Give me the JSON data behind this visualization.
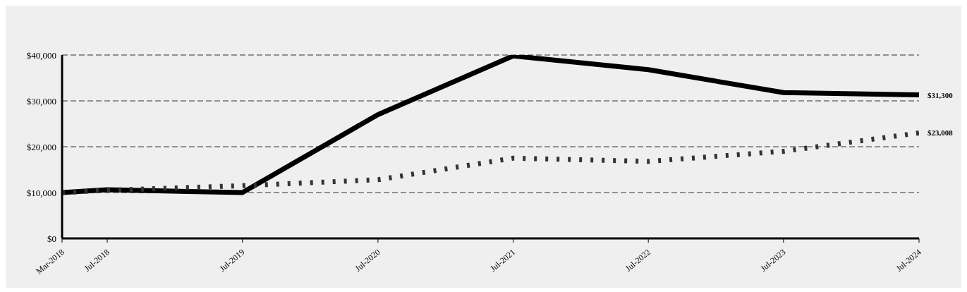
{
  "chart_data": {
    "type": "line",
    "x": [
      "2018-03",
      "2018-07",
      "2019-07",
      "2020-07",
      "2021-07",
      "2022-07",
      "2023-07",
      "2024-07"
    ],
    "series": [
      {
        "color": "#000000",
        "line_style": "solid",
        "values": [
          10000,
          10600,
          10000,
          27000,
          39800,
          36800,
          31800,
          31300
        ],
        "value_labels": [
          null,
          null,
          null,
          null,
          null,
          null,
          null,
          "$31,300"
        ]
      },
      {
        "color": "#333333",
        "line_style": "dotted",
        "values": [
          10000,
          10500,
          11500,
          12800,
          17500,
          16800,
          19000,
          23008
        ],
        "value_labels": [
          null,
          null,
          null,
          null,
          null,
          null,
          null,
          "$23,008"
        ]
      }
    ],
    "xlim": [
      "2018-03",
      "2024-07"
    ],
    "xticks": [
      {
        "value": "2018-03",
        "label": "Mar-2018"
      },
      {
        "value": "2018-07",
        "label": "Jul-2018"
      },
      {
        "value": "2019-07",
        "label": "Jul-2019"
      },
      {
        "value": "2020-07",
        "label": "Jul-2020"
      },
      {
        "value": "2021-07",
        "label": "Jul-2021"
      },
      {
        "value": "2022-07",
        "label": "Jul-2022"
      },
      {
        "value": "2023-07",
        "label": "Jul-2023"
      },
      {
        "value": "2024-07",
        "label": "Jul-2024"
      }
    ],
    "ylim": [
      0,
      40000
    ],
    "yticks": [
      {
        "value": 0,
        "label": "$0"
      },
      {
        "value": 10000,
        "label": "$10,000"
      },
      {
        "value": 20000,
        "label": "$20,000"
      },
      {
        "value": 30000,
        "label": "$30,000"
      },
      {
        "value": 40000,
        "label": "$40,000"
      }
    ],
    "grid": "y",
    "legend": false,
    "marker": "none"
  }
}
